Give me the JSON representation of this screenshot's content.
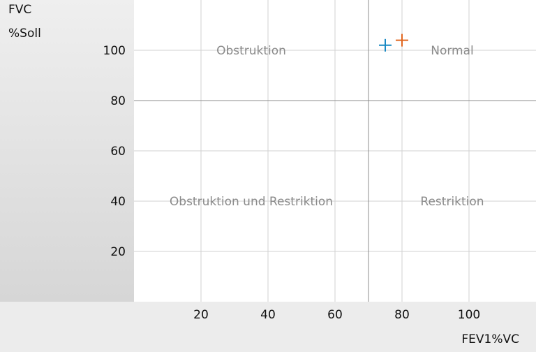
{
  "chart_data": {
    "type": "scatter",
    "ylabel_line1": "FVC",
    "ylabel_line2": "%Soll",
    "xlabel": "FEV1%VC",
    "xlim": [
      0,
      120
    ],
    "ylim": [
      0,
      120
    ],
    "x_ticks": [
      20,
      40,
      60,
      80,
      100
    ],
    "y_ticks": [
      20,
      40,
      60,
      80,
      100
    ],
    "grid": true,
    "threshold_x": 70,
    "threshold_y": 80,
    "regions": [
      {
        "label": "Obstruktion",
        "x": 35,
        "y": 100
      },
      {
        "label": "Normal",
        "x": 95,
        "y": 100
      },
      {
        "label": "Obstruktion und Restriktion",
        "x": 35,
        "y": 40
      },
      {
        "label": "Restriktion",
        "x": 95,
        "y": 40
      }
    ],
    "series": [
      {
        "color": "#1a8ac4",
        "points": [
          {
            "x": 75,
            "y": 102
          }
        ]
      },
      {
        "color": "#e0661f",
        "points": [
          {
            "x": 80,
            "y": 104
          }
        ]
      }
    ]
  }
}
